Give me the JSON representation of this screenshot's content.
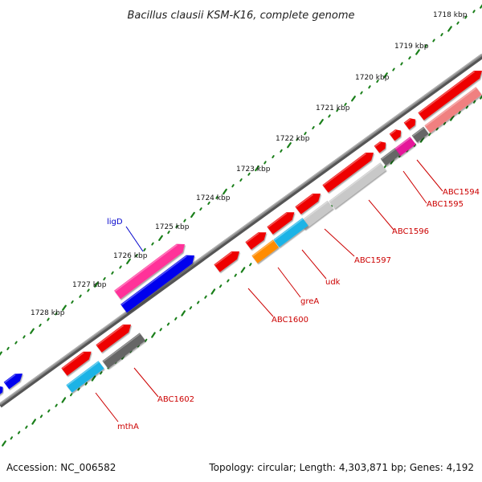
{
  "title": "Bacillus clausii KSM-K16, complete genome",
  "footer": {
    "accession": "Accession: NC_006582",
    "summary": "Topology: circular; Length: 4,303,871 bp; Genes: 4,192"
  },
  "ticks": [
    "1718 kbp",
    "1719 kbp",
    "1720 kbp",
    "1721 kbp",
    "1722 kbp",
    "1723 kbp",
    "1724 kbp",
    "1725 kbp",
    "1726 kbp",
    "1727 kbp",
    "1728 kbp"
  ],
  "genes": [
    {
      "label": "ligD",
      "color": "#0000cc"
    },
    {
      "label": "ABC1594",
      "color": "#cc0000"
    },
    {
      "label": "ABC1595",
      "color": "#cc0000"
    },
    {
      "label": "ABC1596",
      "color": "#cc0000"
    },
    {
      "label": "ABC1597",
      "color": "#cc0000"
    },
    {
      "label": "udk",
      "color": "#cc0000"
    },
    {
      "label": "greA",
      "color": "#cc0000"
    },
    {
      "label": "ABC1600",
      "color": "#cc0000"
    },
    {
      "label": "ABC1602",
      "color": "#cc0000"
    },
    {
      "label": "mthA",
      "color": "#cc0000"
    }
  ],
  "colors": {
    "backbone": "#808080",
    "tick": "#1a7f1a",
    "red": "#ee0000",
    "pink": "#ff3399",
    "magenta": "#e5139a",
    "blue": "#0000ee",
    "cyan": "#1ab3e6",
    "orange": "#ff8c00",
    "lightgray": "#c8c8c8",
    "darkgray": "#666666",
    "salmon": "#f08080"
  }
}
